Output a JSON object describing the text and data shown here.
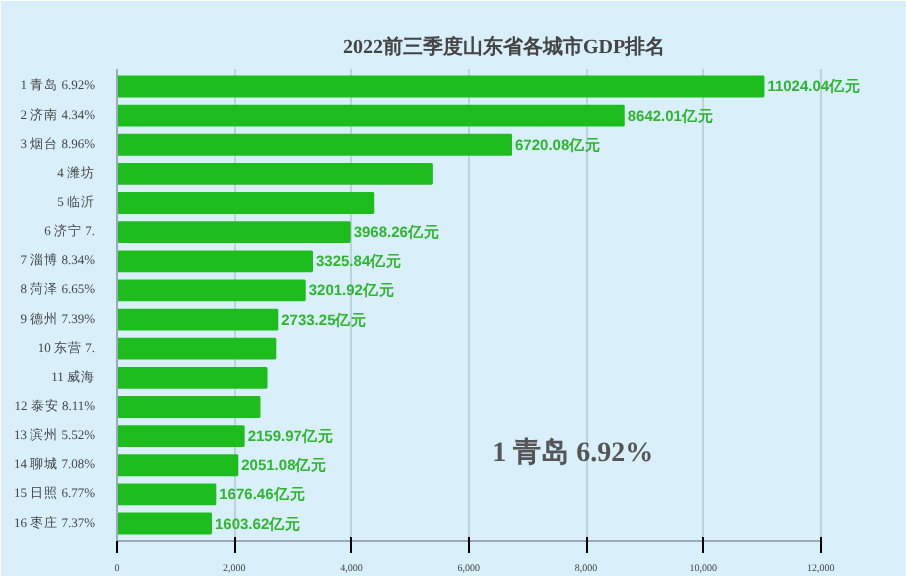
{
  "chart_data": {
    "type": "bar",
    "orientation": "horizontal",
    "title": "2022前三季度山东省各城市GDP排名",
    "categories": [
      "1 青岛 6.92%",
      "2 济南 4.34%",
      "3 烟台 8.96%",
      "4 潍坊",
      "5 临沂",
      "6 济宁 7.",
      "7 淄博 8.34%",
      "8 菏泽 6.65%",
      "9 德州 7.39%",
      "10 东营 7.",
      "11 威海",
      "12 泰安 8.11%",
      "13 滨州 5.52%",
      "14 聊城 7.08%",
      "15 日照 6.77%",
      "16 枣庄 7.37%"
    ],
    "values": [
      11024.04,
      8642.01,
      6720.08,
      5370,
      4370,
      3968.26,
      3325.84,
      3201.92,
      2733.25,
      2700,
      2550,
      2430,
      2159.97,
      2051.08,
      1676.46,
      1603.62
    ],
    "value_labels": [
      "11024.04亿元",
      "8642.01亿元",
      "6720.08亿元",
      null,
      null,
      "3968.26亿元",
      "3325.84亿元",
      "3201.92亿元",
      "2733.25亿元",
      null,
      null,
      null,
      "2159.97亿元",
      "2051.08亿元",
      "1676.46亿元",
      "1603.62亿元"
    ],
    "color": "#1ebd1e",
    "xlim": [
      0,
      12000
    ],
    "xticks": [
      {
        "value": 0,
        "label": "0"
      },
      {
        "value": 2000,
        "label": "2,000"
      },
      {
        "value": 4000,
        "label": "4,000"
      },
      {
        "value": 6000,
        "label": "6,000"
      },
      {
        "value": 8000,
        "label": "8,000"
      },
      {
        "value": 10000,
        "label": "10,000"
      },
      {
        "value": 12000,
        "label": "12,000"
      }
    ],
    "grid": "x",
    "annotations": [
      "1 青岛 6.92%"
    ]
  }
}
